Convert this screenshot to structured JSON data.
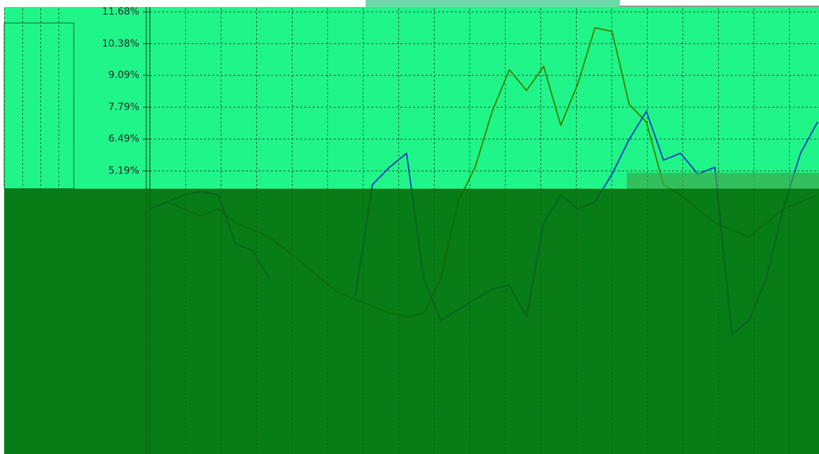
{
  "chart_data": {
    "type": "line",
    "categories": [
      null,
      null,
      null,
      null,
      null,
      null,
      null,
      null,
      null,
      null,
      null,
      null,
      null,
      null,
      null,
      null,
      null,
      null,
      null,
      null,
      null,
      null,
      null,
      null,
      null,
      null,
      null,
      null,
      null,
      null,
      null,
      null,
      null,
      null,
      null,
      null,
      null,
      null,
      null,
      null
    ],
    "series": [
      {
        "color": "#3a8a00",
        "values": [
          3.64,
          3.92,
          3.64,
          3.36,
          3.64,
          3.07,
          2.79,
          2.5,
          1.94,
          1.37,
          0.8,
          0.23,
          -0.05,
          -0.34,
          -0.62,
          -0.76,
          -0.62,
          0.8,
          3.92,
          5.34,
          7.62,
          9.32,
          8.47,
          9.46,
          7.05,
          8.75,
          11.03,
          10.88,
          7.9,
          7.19,
          4.63,
          4.21,
          3.64,
          3.07,
          2.79,
          2.5,
          3.07,
          3.64,
          3.92,
          4.21
        ]
      },
      {
        "color": "#1246b4",
        "values": [
          3.64,
          3.92,
          4.21,
          4.35,
          4.21,
          2.22,
          1.94,
          0.8,
          null,
          null,
          null,
          null,
          0.09,
          4.63,
          5.34,
          5.91,
          0.8,
          -0.91,
          -0.48,
          -0.05,
          0.37,
          0.52,
          -0.76,
          3.07,
          4.21,
          3.64,
          3.92,
          5.06,
          6.48,
          7.62,
          5.63,
          5.91,
          5.06,
          5.34,
          -1.47,
          -0.91,
          0.8,
          3.64,
          5.91,
          7.19
        ]
      }
    ],
    "ylim": [
      -6.36,
      11.88
    ],
    "yticks": [
      {
        "value": 11.68,
        "label": "11.68%"
      },
      {
        "value": 10.38,
        "label": "10.38%"
      },
      {
        "value": 9.09,
        "label": "9.09%"
      },
      {
        "value": 7.79,
        "label": "7.79%"
      },
      {
        "value": 6.49,
        "label": "6.49%"
      },
      {
        "value": 5.19,
        "label": "5.19%"
      }
    ],
    "grid": true
  }
}
